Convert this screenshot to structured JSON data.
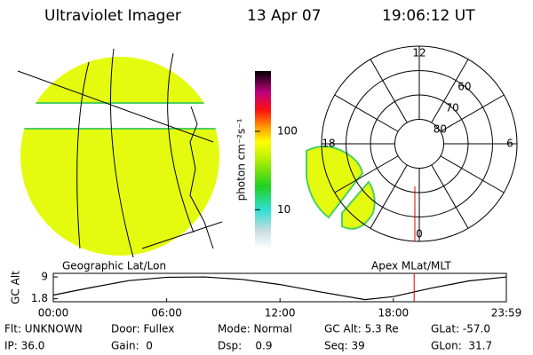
{
  "header": {
    "instrument": "Ultraviolet Imager",
    "date": "13 Apr 07",
    "time": "19:06:12 UT"
  },
  "colorbar": {
    "label": "photon cm⁻²s⁻¹",
    "log": true,
    "clim": [
      3.2,
      590
    ],
    "ticks": [
      10,
      100
    ]
  },
  "polar": {
    "rings": [
      80,
      70,
      60
    ],
    "outer_lat": 50,
    "mlt_labels": [
      12,
      6,
      0,
      18
    ]
  },
  "projection_labels": {
    "left": "Geographic Lat/Lon",
    "right": "Apex MLat/MLT"
  },
  "altitude_plot": {
    "type": "line",
    "ylabel": "GC Alt",
    "ylim": [
      0.8,
      10.2
    ],
    "yticks": [
      1.8,
      9.0
    ],
    "xlim": [
      0,
      23.98
    ],
    "xticks": [
      {
        "value": 0,
        "label": "00:00"
      },
      {
        "value": 6,
        "label": "06:00"
      },
      {
        "value": 12,
        "label": "12:00"
      },
      {
        "value": 18,
        "label": "18:00"
      },
      {
        "value": 23.98,
        "label": "23:59"
      }
    ],
    "x": [
      0,
      2,
      4,
      6,
      8,
      10,
      12,
      14,
      16.5,
      18,
      20,
      22,
      23.98
    ],
    "values": [
      3.0,
      5.5,
      7.8,
      8.9,
      9.0,
      8.2,
      6.5,
      4.2,
      1.5,
      2.5,
      5.3,
      7.7,
      9.0
    ],
    "color": "#000000",
    "marker_hour": 19.1,
    "marker_color": "#e00000"
  },
  "footer": {
    "rows": [
      [
        "Flt: UNKNOWN",
        "Door: Fullex",
        "Mode: Normal",
        "GC Alt: 5.3 Re",
        "GLat: -57.0"
      ],
      [
        "IP: 36.0",
        "Gain:  0",
        "Dsp:    0.9",
        "Seq: 39",
        "GLon:  31.7"
      ]
    ]
  }
}
